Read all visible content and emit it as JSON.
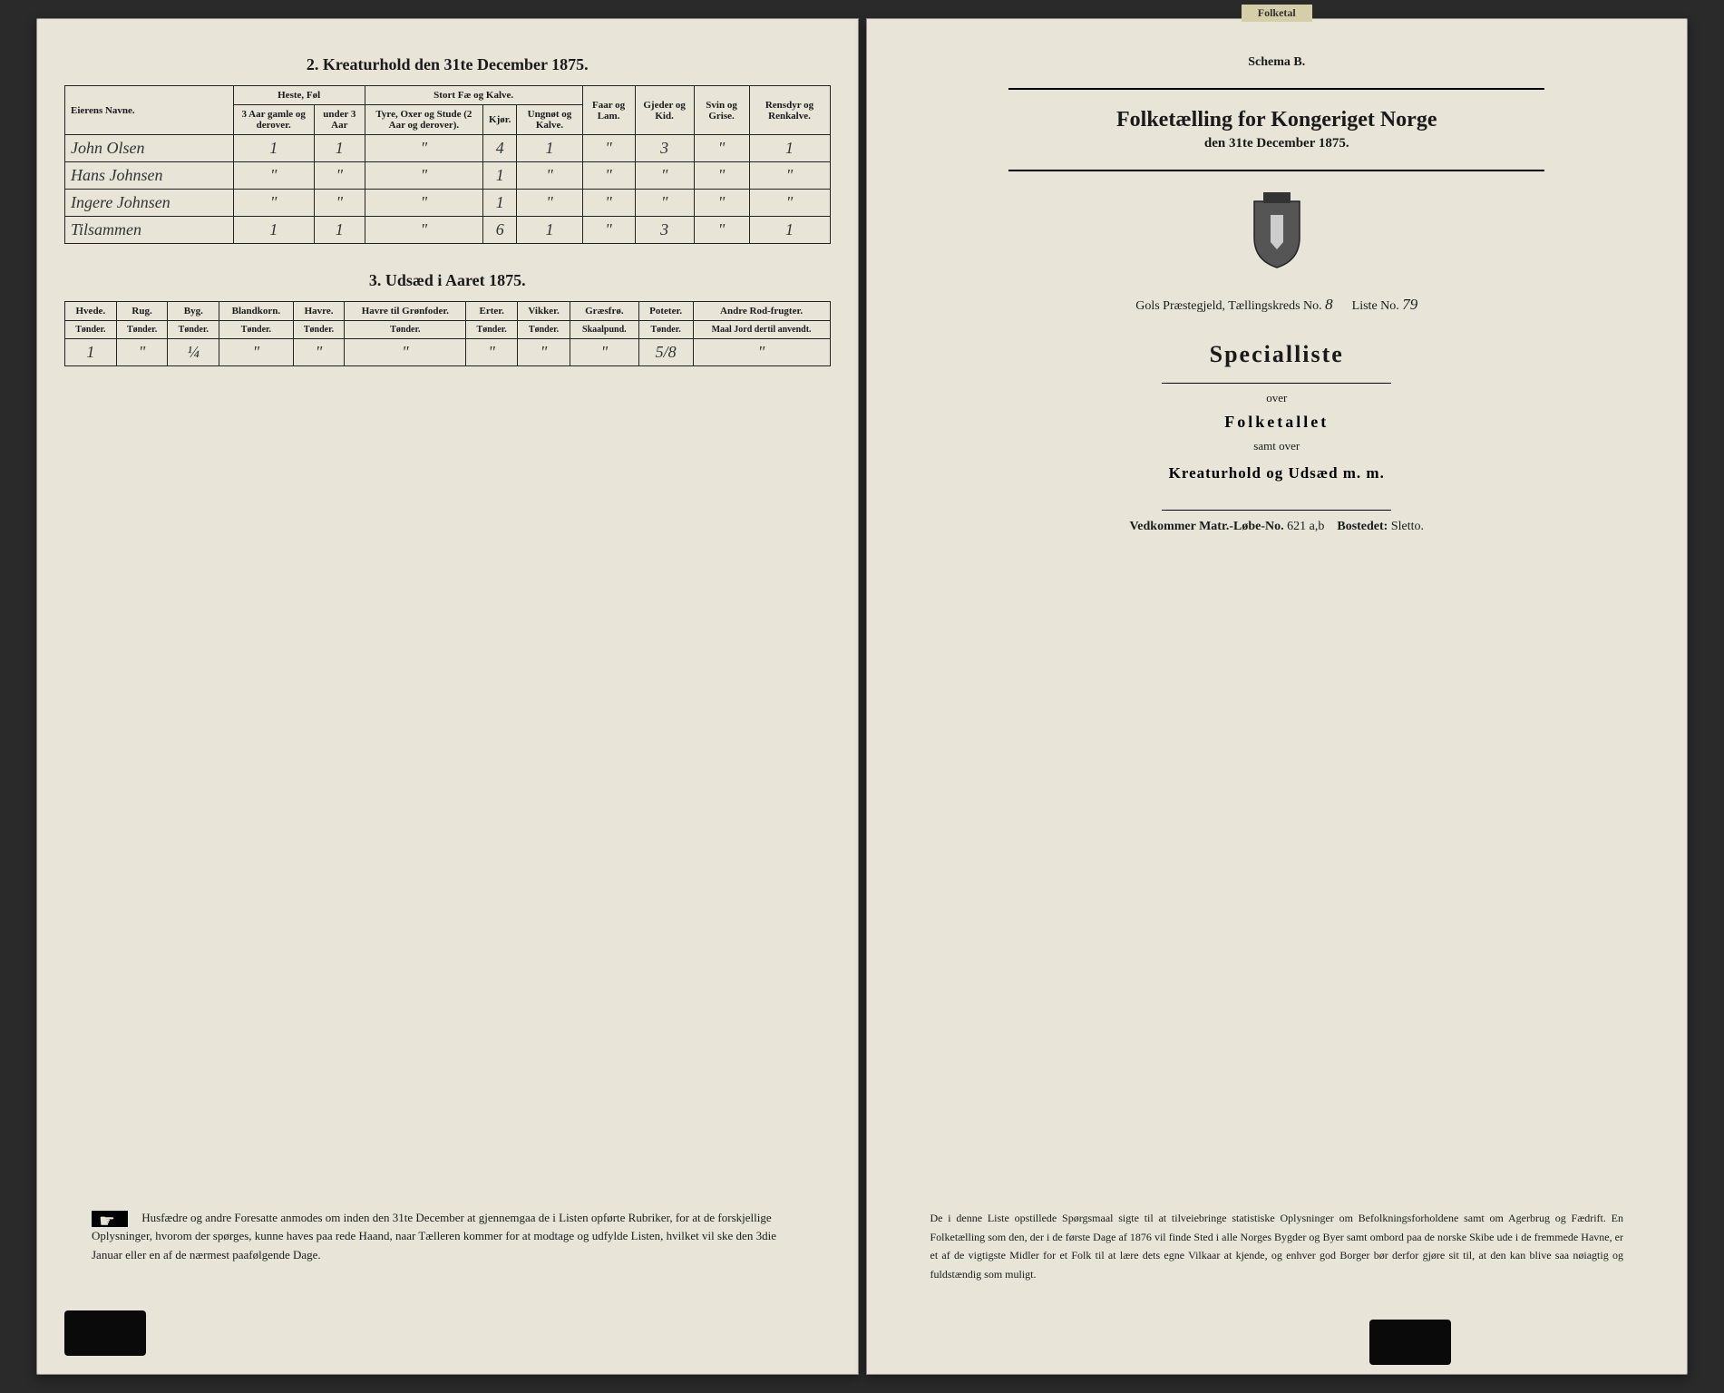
{
  "left": {
    "section2_title": "2. Kreaturhold den 31te December 1875.",
    "table2": {
      "headers": {
        "name": "Eierens Navne.",
        "heste": "Heste, Føl",
        "heste_sub": [
          "3 Aar gamle og derover.",
          "under 3 Aar"
        ],
        "stort": "Stort Fæ og Kalve.",
        "stort_sub": [
          "Tyre, Oxer og Stude (2 Aar og derover).",
          "Kjør.",
          "Ungnøt og Kalve."
        ],
        "faar": "Faar og Lam.",
        "gjeder": "Gjeder og Kid.",
        "svin": "Svin og Grise.",
        "rensdyr": "Rensdyr og Renkalve."
      },
      "rows": [
        {
          "name": "John Olsen",
          "v": [
            "1",
            "1",
            "\"",
            "4",
            "1",
            "\"",
            "3",
            "\"",
            "1"
          ]
        },
        {
          "name": "Hans Johnsen",
          "v": [
            "\"",
            "\"",
            "\"",
            "1",
            "\"",
            "\"",
            "\"",
            "\"",
            "\""
          ]
        },
        {
          "name": "Ingere Johnsen",
          "v": [
            "\"",
            "\"",
            "\"",
            "1",
            "\"",
            "\"",
            "\"",
            "\"",
            "\""
          ]
        },
        {
          "name": "Tilsammen",
          "v": [
            "1",
            "1",
            "\"",
            "6",
            "1",
            "\"",
            "3",
            "\"",
            "1"
          ]
        }
      ]
    },
    "section3_title": "3. Udsæd i Aaret 1875.",
    "table3": {
      "headers": [
        "Hvede.",
        "Rug.",
        "Byg.",
        "Blandkorn.",
        "Havre.",
        "Havre til Grønfoder.",
        "Erter.",
        "Vikker.",
        "Græsfrø.",
        "Poteter.",
        "Andre Rod-frugter."
      ],
      "sub": [
        "Tønder.",
        "Tønder.",
        "Tønder.",
        "Tønder.",
        "Tønder.",
        "Tønder.",
        "Tønder.",
        "Tønder.",
        "Skaalpund.",
        "Tønder.",
        "Maal Jord dertil anvendt."
      ],
      "row": [
        "1",
        "\"",
        "¼",
        "\"",
        "\"",
        "\"",
        "\"",
        "\"",
        "\"",
        "5/8",
        "\""
      ]
    },
    "footer": "Husfædre og andre Foresatte anmodes om inden den 31te December at gjennemgaa de i Listen opførte Rubriker, for at de forskjellige Oplysninger, hvorom der spørges, kunne haves paa rede Haand, naar Tælleren kommer for at modtage og udfylde Listen, hvilket vil ske den 3die Januar eller en af de nærmest paafølgende Dage."
  },
  "right": {
    "tab": "Folketal",
    "schema": "Schema B.",
    "title": "Folketælling for Kongeriget Norge",
    "date": "den 31te December 1875.",
    "meta": {
      "prefix": "Gols Præstegjeld, Tællingskreds No.",
      "kreds": "8",
      "liste_label": "Liste No.",
      "liste": "79"
    },
    "special": "Specialliste",
    "over1": "over",
    "folketallet": "Folketallet",
    "samt": "samt over",
    "kreatur": "Kreaturhold og Udsæd m. m.",
    "matr": {
      "label": "Vedkommer Matr.-Løbe-No.",
      "no": "621 a,b",
      "bostedet_label": "Bostedet:",
      "bostedet": "Sletto."
    },
    "footer": "De i denne Liste opstillede Spørgsmaal sigte til at tilveiebringe statistiske Oplysninger om Befolkningsforholdene samt om Agerbrug og Fædrift. En Folketælling som den, der i de første Dage af 1876 vil finde Sted i alle Norges Bygder og Byer samt ombord paa de norske Skibe ude i de fremmede Havne, er et af de vigtigste Midler for et Folk til at lære dets egne Vilkaar at kjende, og enhver god Borger bør derfor gjøre sit til, at den kan blive saa nøiagtig og fuldstændig som muligt."
  },
  "colors": {
    "paper": "#e8e4d8",
    "ink": "#1a1a1a",
    "bg": "#2a2a2a"
  }
}
